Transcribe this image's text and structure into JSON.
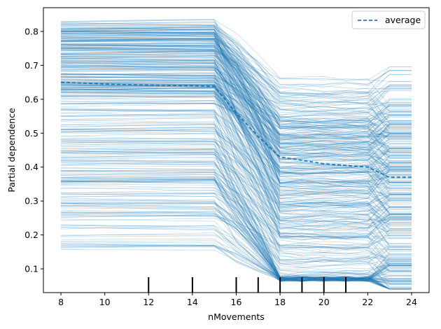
{
  "chart_data": {
    "type": "line",
    "title": "",
    "xlabel": "nMovements",
    "ylabel": "Partial dependence",
    "xlim": [
      7.2,
      24.8
    ],
    "ylim": [
      0.03,
      0.87
    ],
    "xticks": [
      8,
      10,
      12,
      14,
      16,
      18,
      20,
      22,
      24
    ],
    "yticks": [
      0.1,
      0.2,
      0.3,
      0.4,
      0.5,
      0.6,
      0.7,
      0.8
    ],
    "xtick_labels": [
      "8",
      "10",
      "12",
      "14",
      "16",
      "18",
      "20",
      "22",
      "24"
    ],
    "ytick_labels": [
      "0.1",
      "0.2",
      "0.3",
      "0.4",
      "0.5",
      "0.6",
      "0.7",
      "0.8"
    ],
    "grid": false,
    "legend": {
      "position": "top-right",
      "entries": [
        "average"
      ]
    },
    "colors": {
      "individual": "#1f77b4",
      "average": "#1f77b4"
    },
    "x": [
      8,
      9,
      10,
      11,
      12,
      13,
      14,
      15,
      16,
      17,
      18,
      19,
      20,
      21,
      22,
      23,
      24
    ],
    "average": {
      "name": "average",
      "style": "dashed",
      "values": [
        0.65,
        0.648,
        0.645,
        0.643,
        0.642,
        0.641,
        0.64,
        0.638,
        0.56,
        0.49,
        0.43,
        0.42,
        0.41,
        0.405,
        0.4,
        0.37,
        0.37
      ]
    },
    "ice_profile": {
      "description_values_range": [
        0.04,
        0.83
      ],
      "curve_count": 420
    },
    "rug_ticks": [
      12,
      14,
      16,
      17,
      18,
      19,
      20,
      21
    ]
  }
}
